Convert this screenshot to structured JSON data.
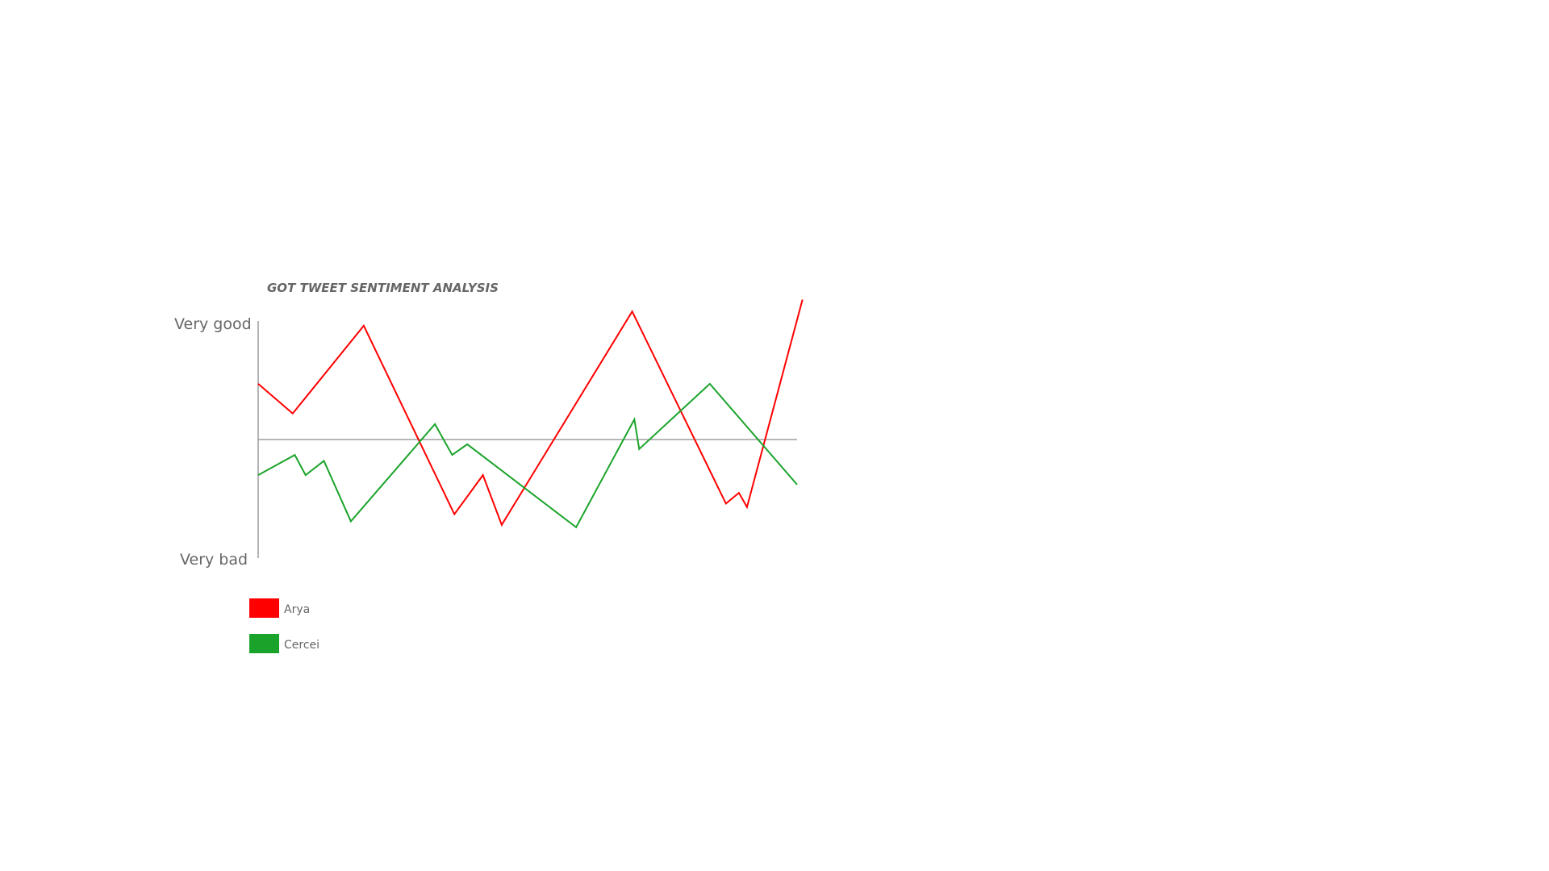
{
  "chart_data": {
    "type": "line",
    "title": "GOT TWEET SENTIMENT ANALYSIS",
    "ylabel_top": "Very good",
    "ylabel_bottom": "Very bad",
    "ylim": [
      -1,
      1
    ],
    "grid": false,
    "legend_position": "bottom-left",
    "series": [
      {
        "name": "Arya",
        "color": "#ff0000",
        "points": [
          [
            0.0,
            0.47
          ],
          [
            0.064,
            0.22
          ],
          [
            0.196,
            0.96
          ],
          [
            0.364,
            -0.63
          ],
          [
            0.417,
            -0.3
          ],
          [
            0.452,
            -0.72
          ],
          [
            0.694,
            1.08
          ],
          [
            0.868,
            -0.54
          ],
          [
            0.892,
            -0.45
          ],
          [
            0.907,
            -0.57
          ],
          [
            1.01,
            1.18
          ]
        ]
      },
      {
        "name": "Cercei",
        "color": "#1aa32a",
        "points": [
          [
            0.0,
            -0.3
          ],
          [
            0.068,
            -0.13
          ],
          [
            0.088,
            -0.3
          ],
          [
            0.122,
            -0.18
          ],
          [
            0.172,
            -0.69
          ],
          [
            0.328,
            0.13
          ],
          [
            0.36,
            -0.13
          ],
          [
            0.388,
            -0.04
          ],
          [
            0.59,
            -0.74
          ],
          [
            0.698,
            0.17
          ],
          [
            0.707,
            -0.08
          ],
          [
            0.838,
            0.47
          ],
          [
            1.0,
            -0.38
          ]
        ]
      }
    ]
  }
}
